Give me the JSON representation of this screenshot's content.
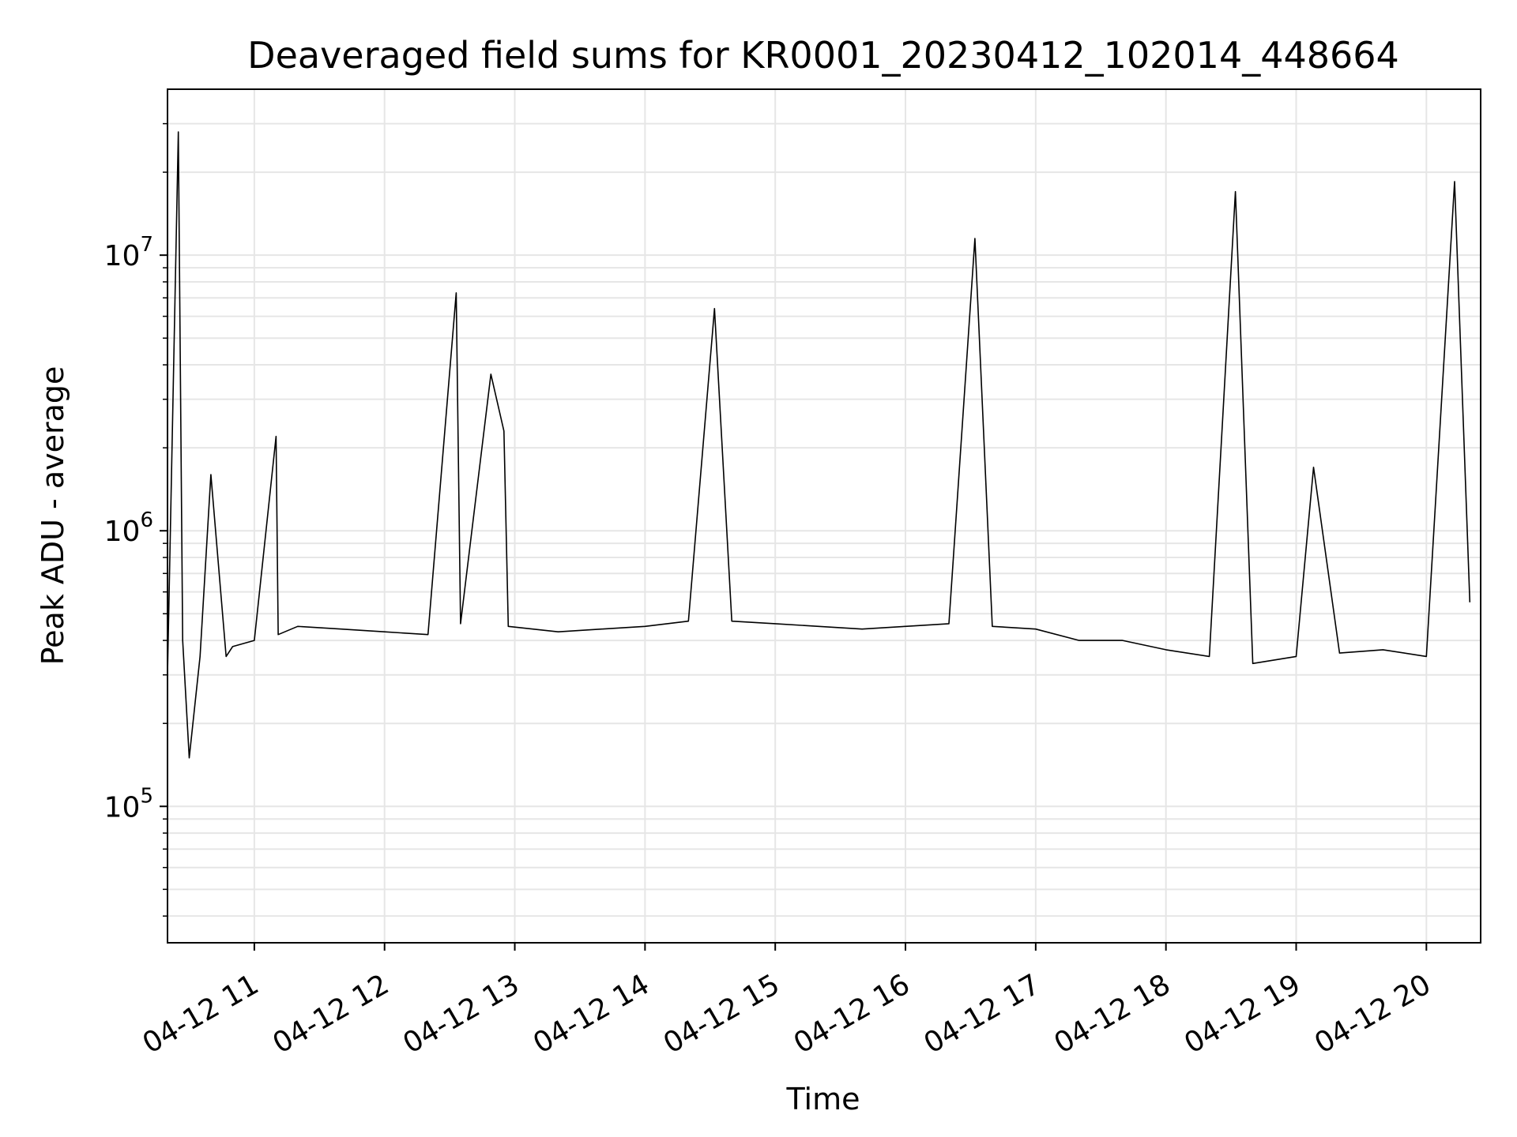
{
  "chart_data": {
    "type": "line",
    "title": "Deaveraged field sums for KR0001_20230412_102014_448664",
    "xlabel": "Time",
    "ylabel": "Peak ADU - average",
    "yscale": "log",
    "grid": true,
    "xlim": [
      "2023-04-12 10:20",
      "2023-04-12 20:25"
    ],
    "ylim": [
      32000,
      40000000
    ],
    "x_ticks": [
      "04-12 11",
      "04-12 12",
      "04-12 13",
      "04-12 14",
      "04-12 15",
      "04-12 16",
      "04-12 17",
      "04-12 18",
      "04-12 19",
      "04-12 20"
    ],
    "y_ticks": [
      {
        "base": "10",
        "exp": "5",
        "value": 100000
      },
      {
        "base": "10",
        "exp": "6",
        "value": 1000000
      },
      {
        "base": "10",
        "exp": "7",
        "value": 10000000
      }
    ],
    "line_color": "#000000",
    "grid_color": "#e6e6e6",
    "series": [
      {
        "x": [
          "2023-04-12 10:20",
          "2023-04-12 10:25",
          "2023-04-12 10:27",
          "2023-04-12 10:30",
          "2023-04-12 10:35",
          "2023-04-12 10:40",
          "2023-04-12 10:47",
          "2023-04-12 10:50",
          "2023-04-12 11:00",
          "2023-04-12 11:10",
          "2023-04-12 11:11",
          "2023-04-12 11:20",
          "2023-04-12 11:40",
          "2023-04-12 12:00",
          "2023-04-12 12:20",
          "2023-04-12 12:33",
          "2023-04-12 12:35",
          "2023-04-12 12:49",
          "2023-04-12 12:55",
          "2023-04-12 12:57",
          "2023-04-12 13:20",
          "2023-04-12 13:40",
          "2023-04-12 14:00",
          "2023-04-12 14:20",
          "2023-04-12 14:32",
          "2023-04-12 14:40",
          "2023-04-12 15:00",
          "2023-04-12 15:20",
          "2023-04-12 15:40",
          "2023-04-12 16:00",
          "2023-04-12 16:20",
          "2023-04-12 16:32",
          "2023-04-12 16:40",
          "2023-04-12 17:00",
          "2023-04-12 17:20",
          "2023-04-12 17:40",
          "2023-04-12 18:00",
          "2023-04-12 18:20",
          "2023-04-12 18:32",
          "2023-04-12 18:40",
          "2023-04-12 19:00",
          "2023-04-12 19:08",
          "2023-04-12 19:20",
          "2023-04-12 19:40",
          "2023-04-12 20:00",
          "2023-04-12 20:13",
          "2023-04-12 20:20"
        ],
        "values": [
          300000,
          28000000,
          400000,
          150000,
          350000,
          1600000,
          350000,
          380000,
          400000,
          2200000,
          420000,
          450000,
          440000,
          430000,
          420000,
          7300000,
          460000,
          3700000,
          2300000,
          450000,
          430000,
          440000,
          450000,
          470000,
          6400000,
          470000,
          460000,
          450000,
          440000,
          450000,
          460000,
          11500000,
          450000,
          440000,
          400000,
          400000,
          370000,
          350000,
          17000000,
          330000,
          350000,
          1700000,
          360000,
          370000,
          350000,
          18500000,
          550000
        ]
      }
    ]
  }
}
